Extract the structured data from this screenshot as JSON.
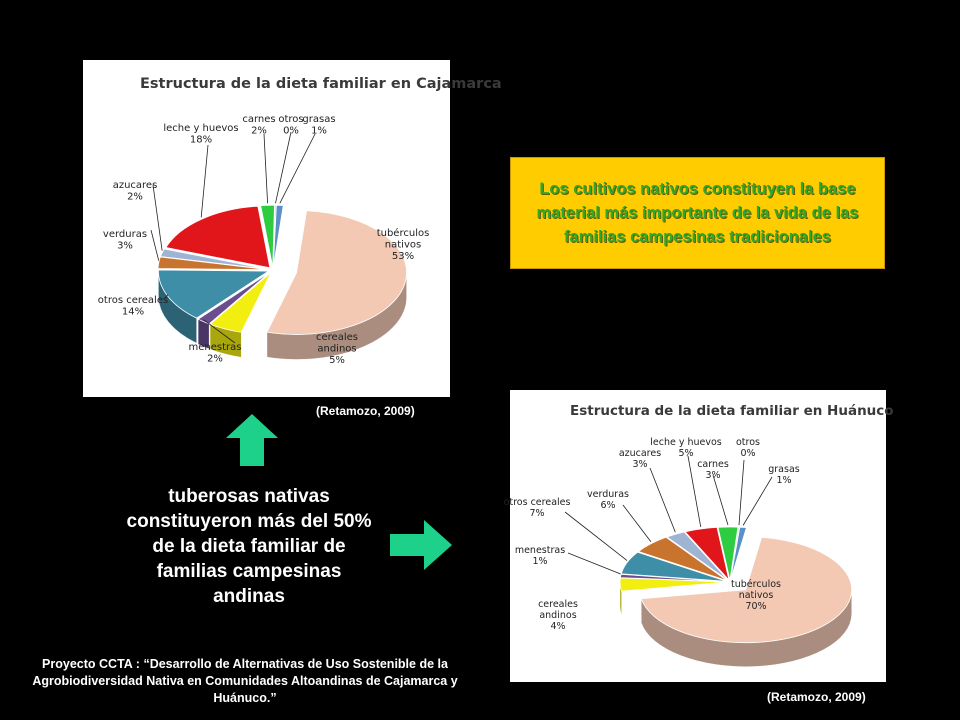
{
  "callout": {
    "text": "Los cultivos nativos constituyen la base material más importante de la vida de las familias campesinas tradicionales"
  },
  "tuber_text": "tuberosas nativas constituyeron más del 50% de la dieta familiar de familias campesinas andinas",
  "project_text": "Proyecto CCTA : “Desarrollo de Alternativas de Uso Sostenible de la Agrobiodiversidad Nativa en Comunidades Altoandinas de Cajamarca y Huánuco.”",
  "citations": [
    "(Retamozo, 2009)",
    "(Retamozo, 2009)"
  ],
  "chart_data": [
    {
      "type": "pie",
      "title": "Estructura de la dieta familiar en Cajamarca",
      "slices": [
        {
          "label": [
            "tubérculos",
            "nativos",
            "53%"
          ],
          "value": 53,
          "color": "#f3c9b4"
        },
        {
          "label": [
            "cereales",
            "andinos",
            "5%"
          ],
          "value": 5,
          "color": "#f2ee0f"
        },
        {
          "label": [
            "menestras",
            "2%"
          ],
          "value": 2,
          "color": "#6a4d8f"
        },
        {
          "label": [
            "otros cereales",
            "14%"
          ],
          "value": 14,
          "color": "#3e8ea7"
        },
        {
          "label": [
            "verduras",
            "3%"
          ],
          "value": 3,
          "color": "#c8742f"
        },
        {
          "label": [
            "azucares",
            "2%"
          ],
          "value": 2,
          "color": "#9fb3d3"
        },
        {
          "label": [
            "leche y huevos",
            "18%"
          ],
          "value": 18,
          "color": "#e0161b"
        },
        {
          "label": [
            "carnes",
            "2%"
          ],
          "value": 2,
          "color": "#2ecc40"
        },
        {
          "label": [
            "otros",
            "0%"
          ],
          "value": 0.2,
          "color": "#c9c9c9"
        },
        {
          "label": [
            "grasas",
            "1%"
          ],
          "value": 1,
          "color": "#5b8fc7"
        }
      ]
    },
    {
      "type": "pie",
      "title": "Estructura de la dieta familiar en Huánuco",
      "slices": [
        {
          "label": [
            "tubérculos",
            "nativos",
            "70%"
          ],
          "value": 70,
          "color": "#f3c9b4"
        },
        {
          "label": [
            "cereales",
            "andinos",
            "4%"
          ],
          "value": 4,
          "color": "#f2ee0f"
        },
        {
          "label": [
            "menestras",
            "1%"
          ],
          "value": 1,
          "color": "#6a4d8f"
        },
        {
          "label": [
            "otros cereales",
            "7%"
          ],
          "value": 7,
          "color": "#3e8ea7"
        },
        {
          "label": [
            "verduras",
            "6%"
          ],
          "value": 6,
          "color": "#c8742f"
        },
        {
          "label": [
            "azucares",
            "3%"
          ],
          "value": 3,
          "color": "#9fb3d3"
        },
        {
          "label": [
            "leche y huevos",
            "5%"
          ],
          "value": 5,
          "color": "#e0161b"
        },
        {
          "label": [
            "carnes",
            "3%"
          ],
          "value": 3,
          "color": "#2ecc40"
        },
        {
          "label": [
            "otros",
            "0%"
          ],
          "value": 0.2,
          "color": "#c9c9c9"
        },
        {
          "label": [
            "grasas",
            "1%"
          ],
          "value": 1,
          "color": "#5b8fc7"
        }
      ]
    }
  ],
  "colors": {
    "background": "#000000",
    "callout_bg": "#ffcc00",
    "callout_text": "#2ea82e",
    "arrow": "#1dd18a"
  }
}
